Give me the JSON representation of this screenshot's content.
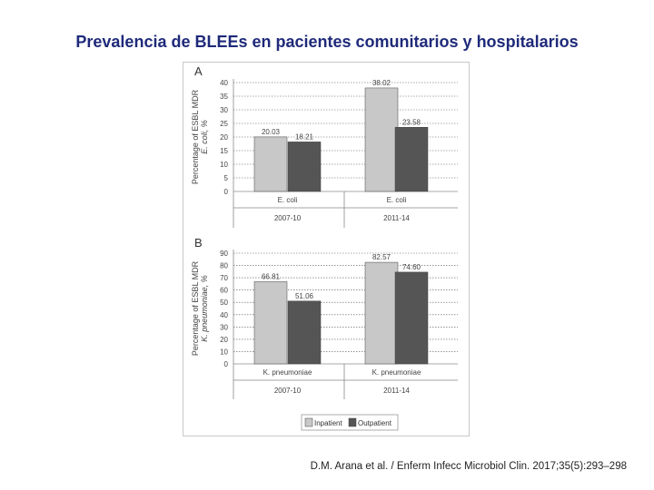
{
  "slide": {
    "title": "Prevalencia de BLEEs en pacientes comunitarios y hospitalarios",
    "citation": "D.M. Arana et al. / Enferm Infecc Microbiol Clin. 2017;35(5):293–298"
  },
  "chart_data": [
    {
      "type": "bar",
      "panel": "A",
      "ylabel_line1": "Percentage of ESBL MDR",
      "ylabel_line2": "E. coli, %",
      "ylim": [
        0,
        40
      ],
      "yticks": [
        0,
        5,
        10,
        15,
        20,
        25,
        30,
        35,
        40
      ],
      "categories": [
        "2007-10",
        "2011-14"
      ],
      "category_labels": [
        "E. coli",
        "E. coli"
      ],
      "series": [
        {
          "name": "Inpatient",
          "values": [
            20.03,
            38.02
          ],
          "labels": [
            "20.03",
            "38.02"
          ],
          "color": "#c8c8c8"
        },
        {
          "name": "Outpatient",
          "values": [
            18.21,
            23.58
          ],
          "labels": [
            "18.21",
            "23.58"
          ],
          "color": "#555555"
        }
      ]
    },
    {
      "type": "bar",
      "panel": "B",
      "ylabel_line1": "Percentage of ESBL MDR",
      "ylabel_line2": "K. pneumoniae, %",
      "ylim": [
        0,
        90
      ],
      "yticks": [
        0,
        10,
        20,
        30,
        40,
        50,
        60,
        70,
        80,
        90
      ],
      "categories": [
        "2007-10",
        "2011-14"
      ],
      "category_labels": [
        "K. pneumoniae",
        "K. pneumoniae"
      ],
      "series": [
        {
          "name": "Inpatient",
          "values": [
            66.81,
            82.57
          ],
          "labels": [
            "66.81",
            "82.57"
          ],
          "color": "#c8c8c8"
        },
        {
          "name": "Outpatient",
          "values": [
            51.06,
            74.6
          ],
          "labels": [
            "51.06",
            "74.60"
          ],
          "color": "#555555"
        }
      ]
    }
  ],
  "legend": {
    "items": [
      {
        "label": "Inpatient",
        "color": "#c8c8c8"
      },
      {
        "label": "Outpatient",
        "color": "#555555"
      }
    ]
  }
}
